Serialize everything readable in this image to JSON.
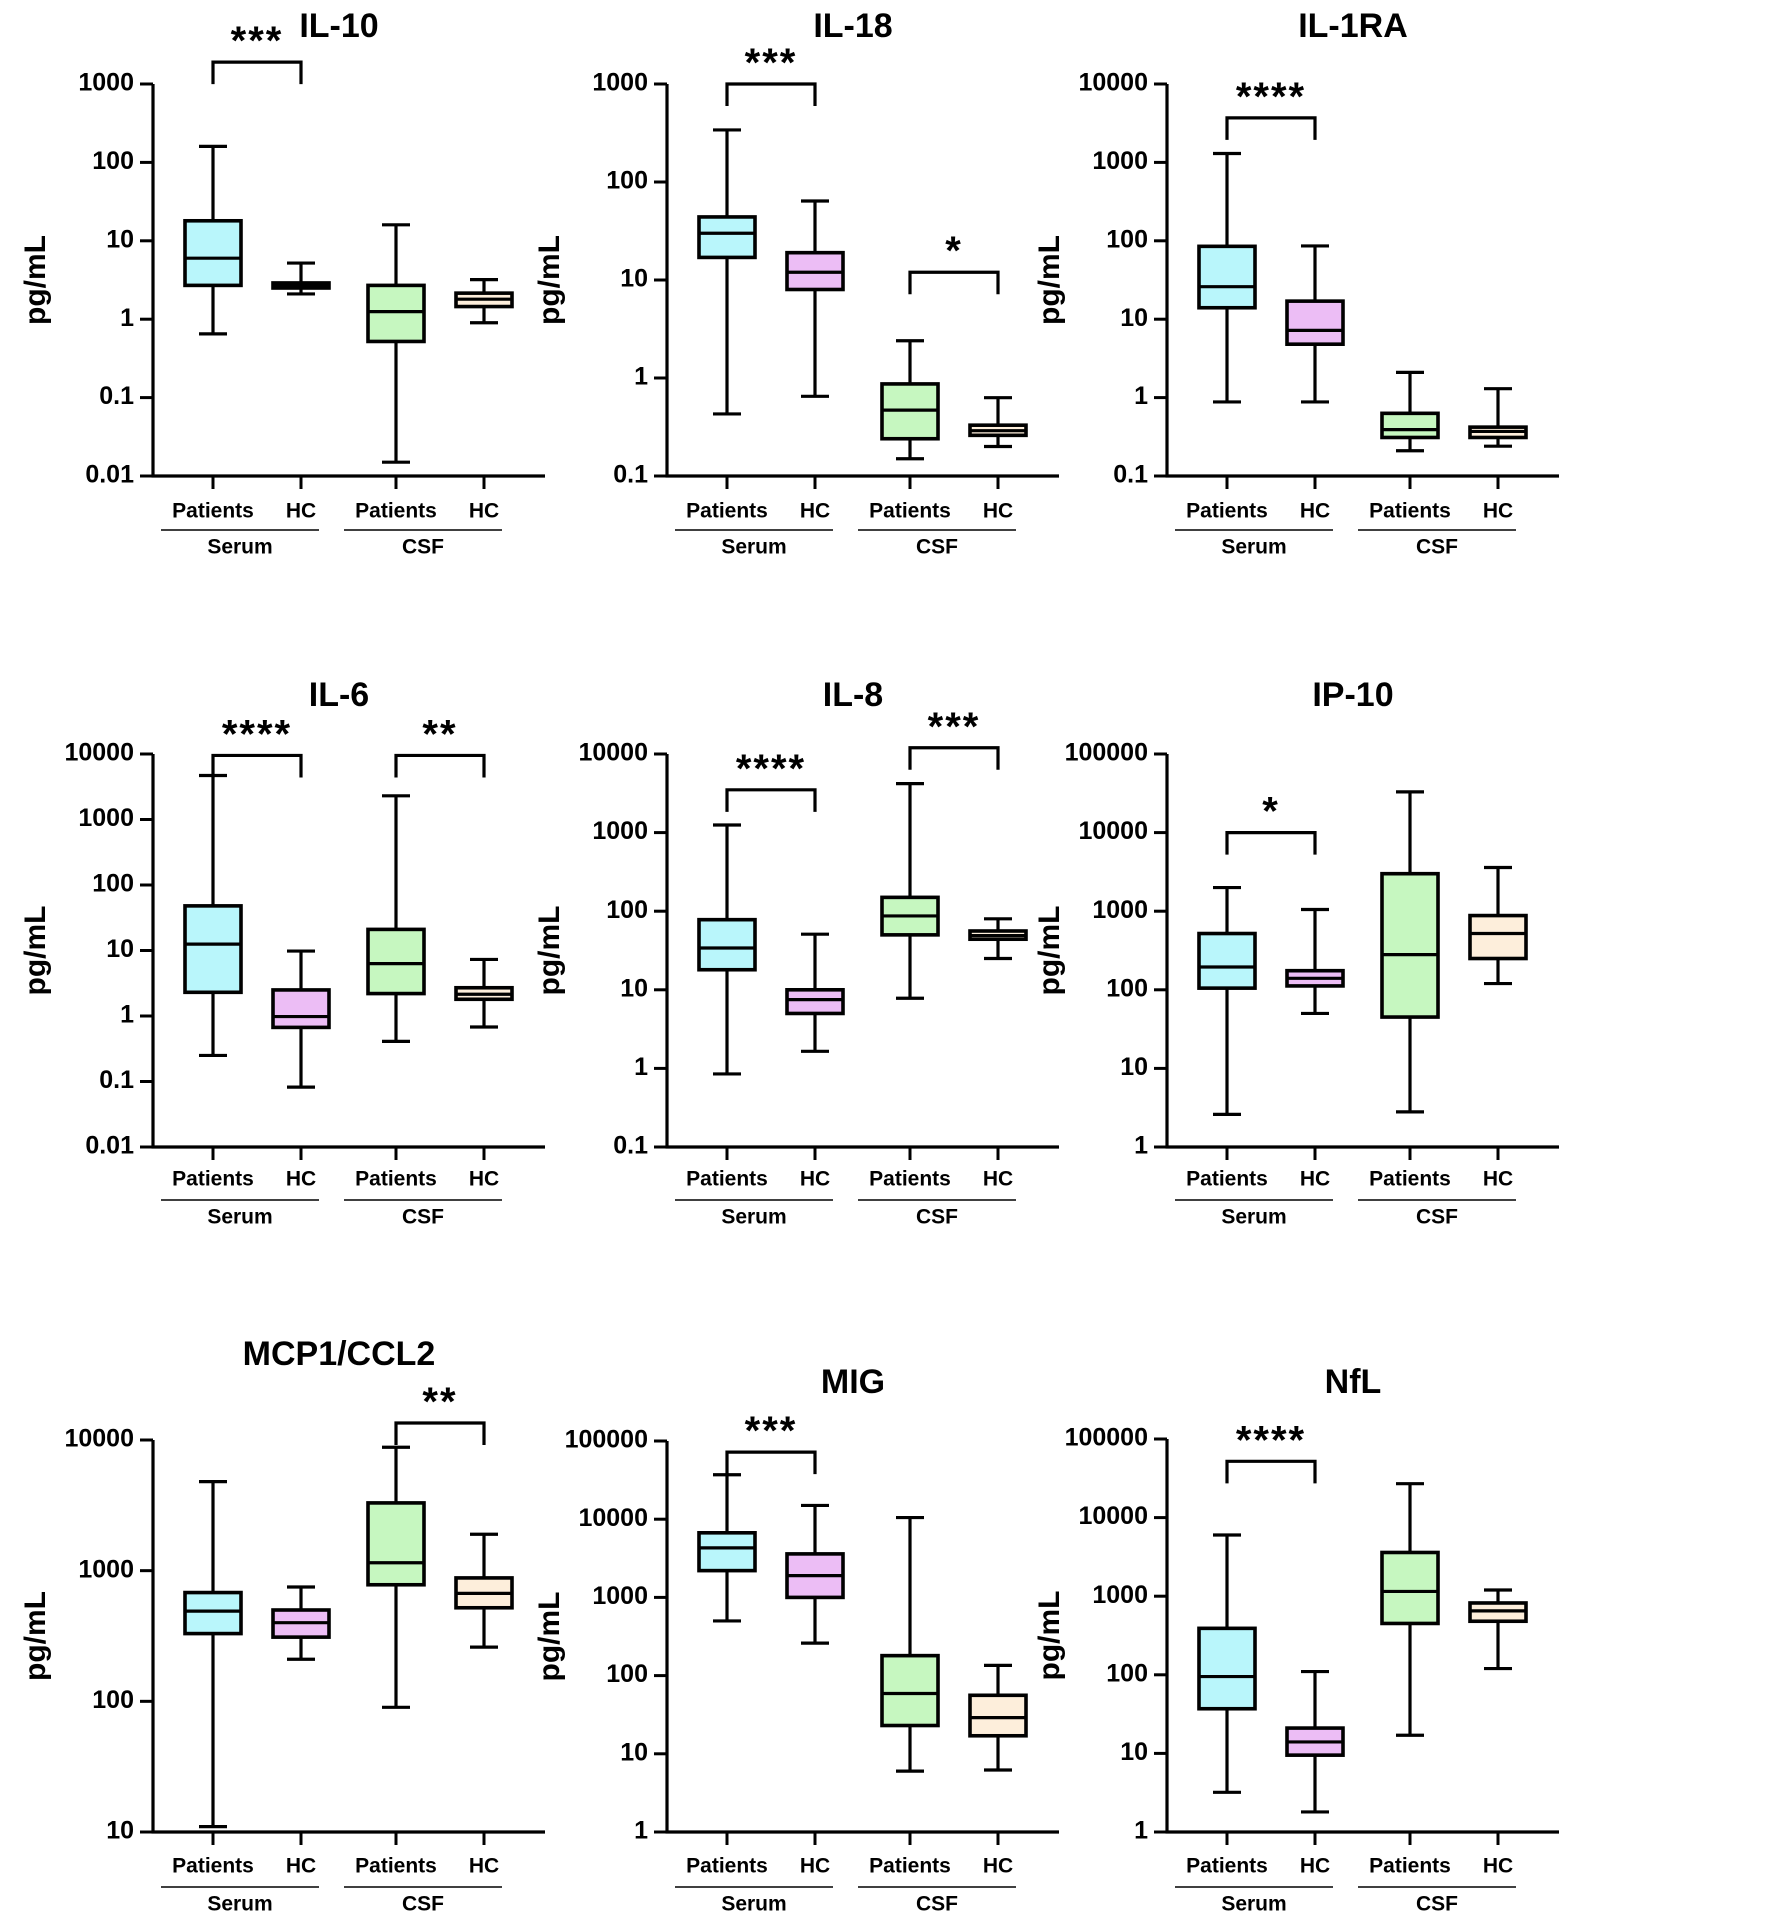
{
  "colors": {
    "serum_patients": "#b9f6fb",
    "serum_hc": "#ecbdf5",
    "csf_patients": "#c6f7c0",
    "csf_hc": "#fdeedb",
    "ink": "#000000"
  },
  "chart_data": [
    {
      "type": "box",
      "title": "IL-10",
      "ylabel": "pg/mL",
      "yscale": "log",
      "ylim": [
        0.01,
        1000
      ],
      "yticks": [
        0.01,
        0.1,
        1,
        10,
        100,
        1000
      ],
      "ytick_labels": [
        "0.01",
        "0.1",
        "1",
        "10",
        "100",
        "1000"
      ],
      "group_labels": [
        "Patients",
        "HC",
        "Patients",
        "HC"
      ],
      "set_labels": [
        "Serum",
        "CSF"
      ],
      "series": [
        {
          "name": "Serum Patients",
          "min": 0.65,
          "q1": 2.7,
          "median": 6,
          "q3": 18,
          "max": 160
        },
        {
          "name": "Serum HC",
          "min": 2.1,
          "q1": 2.5,
          "median": 2.7,
          "q3": 2.9,
          "max": 5.2
        },
        {
          "name": "CSF Patients",
          "min": 0.015,
          "q1": 0.52,
          "median": 1.25,
          "q3": 2.7,
          "max": 16
        },
        {
          "name": "CSF HC",
          "min": 0.9,
          "q1": 1.45,
          "median": 1.8,
          "q3": 2.15,
          "max": 3.2
        }
      ],
      "significance": [
        {
          "from": 0,
          "to": 1,
          "stars": "***",
          "y": 1900,
          "drop": 60
        }
      ]
    },
    {
      "type": "box",
      "title": "IL-18",
      "ylabel": "pg/mL",
      "yscale": "log",
      "ylim": [
        0.1,
        1000
      ],
      "yticks": [
        0.1,
        1,
        10,
        100,
        1000
      ],
      "ytick_labels": [
        "0.1",
        "1",
        "10",
        "100",
        "1000"
      ],
      "group_labels": [
        "Patients",
        "HC",
        "Patients",
        "HC"
      ],
      "set_labels": [
        "Serum",
        "CSF"
      ],
      "series": [
        {
          "name": "Serum Patients",
          "min": 0.43,
          "q1": 17,
          "median": 30,
          "q3": 44,
          "max": 340
        },
        {
          "name": "Serum HC",
          "min": 0.65,
          "q1": 8,
          "median": 12,
          "q3": 19,
          "max": 64
        },
        {
          "name": "CSF Patients",
          "min": 0.15,
          "q1": 0.24,
          "median": 0.47,
          "q3": 0.87,
          "max": 2.4
        },
        {
          "name": "CSF HC",
          "min": 0.2,
          "q1": 0.26,
          "median": 0.29,
          "q3": 0.33,
          "max": 0.63
        }
      ],
      "significance": [
        {
          "from": 0,
          "to": 1,
          "stars": "***",
          "y": 1000,
          "drop": 60
        },
        {
          "from": 2,
          "to": 3,
          "stars": "*",
          "y": 12,
          "drop": 60
        }
      ]
    },
    {
      "type": "box",
      "title": "IL-1RA",
      "ylabel": "pg/mL",
      "yscale": "log",
      "ylim": [
        0.1,
        10000
      ],
      "yticks": [
        0.1,
        1,
        10,
        100,
        1000,
        10000
      ],
      "ytick_labels": [
        "0.1",
        "1",
        "10",
        "100",
        "1000",
        "10000"
      ],
      "group_labels": [
        "Patients",
        "HC",
        "Patients",
        "HC"
      ],
      "set_labels": [
        "Serum",
        "CSF"
      ],
      "series": [
        {
          "name": "Serum Patients",
          "min": 0.88,
          "q1": 14,
          "median": 26,
          "q3": 85,
          "max": 1300
        },
        {
          "name": "Serum HC",
          "min": 0.88,
          "q1": 4.8,
          "median": 7.2,
          "q3": 17,
          "max": 86
        },
        {
          "name": "CSF Patients",
          "min": 0.21,
          "q1": 0.31,
          "median": 0.39,
          "q3": 0.63,
          "max": 2.1
        },
        {
          "name": "CSF HC",
          "min": 0.24,
          "q1": 0.31,
          "median": 0.37,
          "q3": 0.42,
          "max": 1.3
        }
      ],
      "significance": [
        {
          "from": 0,
          "to": 1,
          "stars": "****",
          "y": 3700,
          "drop": 60
        }
      ]
    },
    {
      "type": "box",
      "title": "IL-6",
      "ylabel": "pg/mL",
      "yscale": "log",
      "ylim": [
        0.01,
        10000
      ],
      "yticks": [
        0.01,
        0.1,
        1,
        10,
        100,
        1000,
        10000
      ],
      "ytick_labels": [
        "0.01",
        "0.1",
        "1",
        "10",
        "100",
        "1000",
        "10000"
      ],
      "group_labels": [
        "Patients",
        "HC",
        "Patients",
        "HC"
      ],
      "set_labels": [
        "Serum",
        "CSF"
      ],
      "series": [
        {
          "name": "Serum Patients",
          "min": 0.25,
          "q1": 2.3,
          "median": 12.5,
          "q3": 48,
          "max": 4700
        },
        {
          "name": "Serum HC",
          "min": 0.082,
          "q1": 0.67,
          "median": 0.98,
          "q3": 2.5,
          "max": 9.8
        },
        {
          "name": "CSF Patients",
          "min": 0.41,
          "q1": 2.2,
          "median": 6.3,
          "q3": 21,
          "max": 2300
        },
        {
          "name": "CSF HC",
          "min": 0.68,
          "q1": 1.8,
          "median": 2.15,
          "q3": 2.7,
          "max": 7.3
        }
      ],
      "significance": [
        {
          "from": 0,
          "to": 1,
          "stars": "****",
          "y": 9500,
          "drop": 60
        },
        {
          "from": 2,
          "to": 3,
          "stars": "**",
          "y": 9500,
          "drop": 60
        }
      ]
    },
    {
      "type": "box",
      "title": "IL-8",
      "ylabel": "pg/mL",
      "yscale": "log",
      "ylim": [
        0.1,
        10000
      ],
      "yticks": [
        0.1,
        1,
        10,
        100,
        1000,
        10000
      ],
      "ytick_labels": [
        "0.1",
        "1",
        "10",
        "100",
        "1000",
        "10000"
      ],
      "group_labels": [
        "Patients",
        "HC",
        "Patients",
        "HC"
      ],
      "set_labels": [
        "Serum",
        "CSF"
      ],
      "series": [
        {
          "name": "Serum Patients",
          "min": 0.85,
          "q1": 18,
          "median": 34,
          "q3": 78,
          "max": 1250
        },
        {
          "name": "Serum HC",
          "min": 1.65,
          "q1": 5,
          "median": 7.5,
          "q3": 10,
          "max": 51
        },
        {
          "name": "CSF Patients",
          "min": 7.8,
          "q1": 50,
          "median": 87,
          "q3": 150,
          "max": 4200
        },
        {
          "name": "CSF HC",
          "min": 25,
          "q1": 44,
          "median": 49,
          "q3": 56,
          "max": 80
        }
      ],
      "significance": [
        {
          "from": 0,
          "to": 1,
          "stars": "****",
          "y": 3500,
          "drop": 60
        },
        {
          "from": 2,
          "to": 3,
          "stars": "***",
          "y": 12000,
          "drop": 60
        }
      ]
    },
    {
      "type": "box",
      "title": "IP-10",
      "ylabel": "pg/mL",
      "yscale": "log",
      "ylim": [
        1,
        100000
      ],
      "yticks": [
        1,
        10,
        100,
        1000,
        10000,
        100000
      ],
      "ytick_labels": [
        "1",
        "10",
        "100",
        "1000",
        "10000",
        "100000"
      ],
      "group_labels": [
        "Patients",
        "HC",
        "Patients",
        "HC"
      ],
      "set_labels": [
        "Serum",
        "CSF"
      ],
      "series": [
        {
          "name": "Serum Patients",
          "min": 2.6,
          "q1": 105,
          "median": 195,
          "q3": 520,
          "max": 2000
        },
        {
          "name": "Serum HC",
          "min": 50,
          "q1": 112,
          "median": 140,
          "q3": 175,
          "max": 1050
        },
        {
          "name": "CSF Patients",
          "min": 2.8,
          "q1": 45,
          "median": 280,
          "q3": 3000,
          "max": 33000
        },
        {
          "name": "CSF HC",
          "min": 120,
          "q1": 250,
          "median": 520,
          "q3": 880,
          "max": 3600
        }
      ],
      "significance": [
        {
          "from": 0,
          "to": 1,
          "stars": "*",
          "y": 10000,
          "drop": 60
        }
      ]
    },
    {
      "type": "box",
      "title": "MCP1/CCL2",
      "ylabel": "pg/mL",
      "yscale": "log",
      "ylim": [
        10,
        10000
      ],
      "yticks": [
        10,
        100,
        1000,
        10000
      ],
      "ytick_labels": [
        "10",
        "100",
        "1000",
        "10000"
      ],
      "group_labels": [
        "Patients",
        "HC",
        "Patients",
        "HC"
      ],
      "set_labels": [
        "Serum",
        "CSF"
      ],
      "series": [
        {
          "name": "Serum Patients",
          "min": 11,
          "q1": 330,
          "median": 490,
          "q3": 680,
          "max": 4800
        },
        {
          "name": "Serum HC",
          "min": 210,
          "q1": 310,
          "median": 400,
          "q3": 500,
          "max": 750
        },
        {
          "name": "CSF Patients",
          "min": 90,
          "q1": 780,
          "median": 1150,
          "q3": 3300,
          "max": 8800
        },
        {
          "name": "CSF HC",
          "min": 260,
          "q1": 520,
          "median": 670,
          "q3": 880,
          "max": 1900
        }
      ],
      "significance": [
        {
          "from": 2,
          "to": 3,
          "stars": "**",
          "y": 13500,
          "drop": 60
        }
      ]
    },
    {
      "type": "box",
      "title": "MIG",
      "ylabel": "pg/mL",
      "yscale": "log",
      "ylim": [
        1,
        100000
      ],
      "yticks": [
        1,
        10,
        100,
        1000,
        10000,
        100000
      ],
      "ytick_labels": [
        "1",
        "10",
        "100",
        "1000",
        "10000",
        "100000"
      ],
      "group_labels": [
        "Patients",
        "HC",
        "Patients",
        "HC"
      ],
      "set_labels": [
        "Serum",
        "CSF"
      ],
      "series": [
        {
          "name": "Serum Patients",
          "min": 500,
          "q1": 2200,
          "median": 4300,
          "q3": 6700,
          "max": 37000
        },
        {
          "name": "Serum HC",
          "min": 260,
          "q1": 1000,
          "median": 1900,
          "q3": 3600,
          "max": 15000
        },
        {
          "name": "CSF Patients",
          "min": 6,
          "q1": 23,
          "median": 59,
          "q3": 180,
          "max": 10500
        },
        {
          "name": "CSF HC",
          "min": 6.2,
          "q1": 17,
          "median": 29,
          "q3": 56,
          "max": 135
        }
      ],
      "significance": [
        {
          "from": 0,
          "to": 1,
          "stars": "***",
          "y": 72000,
          "drop": 60
        }
      ]
    },
    {
      "type": "box",
      "title": "NfL",
      "ylabel": "pg/mL",
      "yscale": "log",
      "ylim": [
        1,
        100000
      ],
      "yticks": [
        1,
        10,
        100,
        1000,
        10000,
        100000
      ],
      "ytick_labels": [
        "1",
        "10",
        "100",
        "1000",
        "10000",
        "100000"
      ],
      "group_labels": [
        "Patients",
        "HC",
        "Patients",
        "HC"
      ],
      "set_labels": [
        "Serum",
        "CSF"
      ],
      "series": [
        {
          "name": "Serum Patients",
          "min": 3.2,
          "q1": 37,
          "median": 95,
          "q3": 390,
          "max": 6000
        },
        {
          "name": "Serum HC",
          "min": 1.8,
          "q1": 9.5,
          "median": 14,
          "q3": 21,
          "max": 110
        },
        {
          "name": "CSF Patients",
          "min": 17,
          "q1": 450,
          "median": 1150,
          "q3": 3600,
          "max": 27000
        },
        {
          "name": "CSF HC",
          "min": 120,
          "q1": 480,
          "median": 650,
          "q3": 820,
          "max": 1200
        }
      ],
      "significance": [
        {
          "from": 0,
          "to": 1,
          "stars": "****",
          "y": 52000,
          "drop": 60
        }
      ]
    }
  ]
}
